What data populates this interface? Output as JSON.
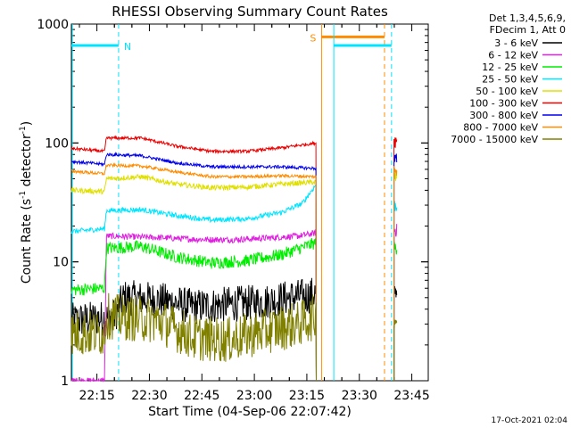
{
  "chart_data": {
    "type": "line",
    "title": "RHESSI Observing Summary Count Rates",
    "xlabel": "Start Time (04-Sep-06 22:07:42)",
    "ylabel_main": "Count Rate (s",
    "ylabel_sup1": "-1",
    "ylabel_mid": " detector",
    "ylabel_sup2": "-1",
    "ylabel_end": ")",
    "y_scale": "log",
    "ylim": [
      1,
      1000
    ],
    "xlim_minutes": [
      0,
      102
    ],
    "x_tick_labels": [
      {
        "label": "22:15",
        "minute": 7.3
      },
      {
        "label": "22:30",
        "minute": 22.3
      },
      {
        "label": "22:45",
        "minute": 37.3
      },
      {
        "label": "23:00",
        "minute": 52.3
      },
      {
        "label": "23:15",
        "minute": 67.3
      },
      {
        "label": "23:30",
        "minute": 82.3
      },
      {
        "label": "23:45",
        "minute": 97.3
      }
    ],
    "y_tick_labels": [
      {
        "label": "1",
        "value": 1
      },
      {
        "label": "10",
        "value": 10
      },
      {
        "label": "100",
        "value": 100
      },
      {
        "label": "1000",
        "value": 1000
      }
    ],
    "legend_header": [
      "Det 1,3,4,5,6,9,",
      "FDecim 1, Att 0"
    ],
    "legend_placement": "right",
    "series": [
      {
        "name": "3 - 6 keV",
        "color": "#000000",
        "points": [
          [
            0,
            3.2
          ],
          [
            5,
            3.3
          ],
          [
            12,
            3.4
          ],
          [
            15,
            5.0
          ],
          [
            25,
            4.8
          ],
          [
            35,
            4.2
          ],
          [
            45,
            4.4
          ],
          [
            55,
            4.6
          ],
          [
            62,
            5.0
          ],
          [
            68,
            5.2
          ],
          [
            70,
            5.5
          ]
        ]
      },
      {
        "name": "6 - 12 keV",
        "color": "#e020e0",
        "points": [
          [
            0,
            1.0
          ],
          [
            9.5,
            1.0
          ],
          [
            10,
            16.5
          ],
          [
            25,
            16.0
          ],
          [
            35,
            15.5
          ],
          [
            45,
            15.3
          ],
          [
            55,
            15.8
          ],
          [
            65,
            16.5
          ],
          [
            70,
            17.5
          ]
        ]
      },
      {
        "name": "12 - 25 keV",
        "color": "#00ee00",
        "points": [
          [
            0,
            5.8
          ],
          [
            9.5,
            6.0
          ],
          [
            10,
            13.0
          ],
          [
            20,
            13.5
          ],
          [
            30,
            11.0
          ],
          [
            40,
            9.8
          ],
          [
            50,
            10.2
          ],
          [
            60,
            11.5
          ],
          [
            70,
            14.5
          ]
        ]
      },
      {
        "name": "25 - 50 keV",
        "color": "#00e5ff",
        "points": [
          [
            0,
            18.0
          ],
          [
            9.5,
            19.0
          ],
          [
            10,
            27.0
          ],
          [
            20,
            27.5
          ],
          [
            30,
            24.5
          ],
          [
            40,
            22.5
          ],
          [
            50,
            23.0
          ],
          [
            60,
            26.0
          ],
          [
            66,
            31.0
          ],
          [
            70,
            45.0
          ]
        ]
      },
      {
        "name": "50 - 100 keV",
        "color": "#e0e000",
        "points": [
          [
            0,
            40.0
          ],
          [
            9.5,
            39.0
          ],
          [
            10,
            50.0
          ],
          [
            20,
            52.0
          ],
          [
            30,
            45.0
          ],
          [
            40,
            42.0
          ],
          [
            50,
            42.5
          ],
          [
            60,
            45.0
          ],
          [
            70,
            47.0
          ]
        ]
      },
      {
        "name": "100 - 300 keV",
        "color": "#ee0000",
        "points": [
          [
            0,
            90.0
          ],
          [
            9.5,
            85.0
          ],
          [
            10,
            110.0
          ],
          [
            20,
            110.0
          ],
          [
            30,
            94.0
          ],
          [
            40,
            85.0
          ],
          [
            50,
            85.0
          ],
          [
            60,
            91.0
          ],
          [
            70,
            100.0
          ]
        ]
      },
      {
        "name": "300 - 800 keV",
        "color": "#0000ee",
        "points": [
          [
            0,
            70.0
          ],
          [
            9.5,
            66.0
          ],
          [
            10,
            80.0
          ],
          [
            20,
            78.0
          ],
          [
            30,
            68.0
          ],
          [
            40,
            63.0
          ],
          [
            50,
            63.0
          ],
          [
            60,
            63.0
          ],
          [
            70,
            61.0
          ]
        ]
      },
      {
        "name": "800 - 7000 keV",
        "color": "#ff8c00",
        "points": [
          [
            0,
            58.0
          ],
          [
            9.5,
            55.0
          ],
          [
            10,
            65.0
          ],
          [
            20,
            64.0
          ],
          [
            30,
            57.0
          ],
          [
            40,
            52.0
          ],
          [
            50,
            52.0
          ],
          [
            60,
            53.0
          ],
          [
            70,
            52.0
          ]
        ]
      },
      {
        "name": "7000 - 15000 keV",
        "color": "#808000",
        "points": [
          [
            0,
            2.5
          ],
          [
            9.5,
            2.5
          ],
          [
            10,
            3.5
          ],
          [
            25,
            3.2
          ],
          [
            35,
            2.3
          ],
          [
            45,
            2.2
          ],
          [
            55,
            2.6
          ],
          [
            65,
            3.0
          ],
          [
            70,
            3.5
          ]
        ]
      }
    ],
    "annotations": [
      {
        "label": "N",
        "color": "#00e5ff",
        "bar_value": 660,
        "from_minute": 0,
        "to_minute": 13.5
      },
      {
        "label": "S",
        "color": "#ff8c00",
        "bar_value": 780,
        "from_minute": 71.5,
        "to_minute": 89.5
      },
      {
        "label": "",
        "color": "#00e5ff",
        "bar_value": 660,
        "from_minute": 75,
        "to_minute": 91.5
      }
    ]
  },
  "footer_date": "17-Oct-2021 02:04"
}
